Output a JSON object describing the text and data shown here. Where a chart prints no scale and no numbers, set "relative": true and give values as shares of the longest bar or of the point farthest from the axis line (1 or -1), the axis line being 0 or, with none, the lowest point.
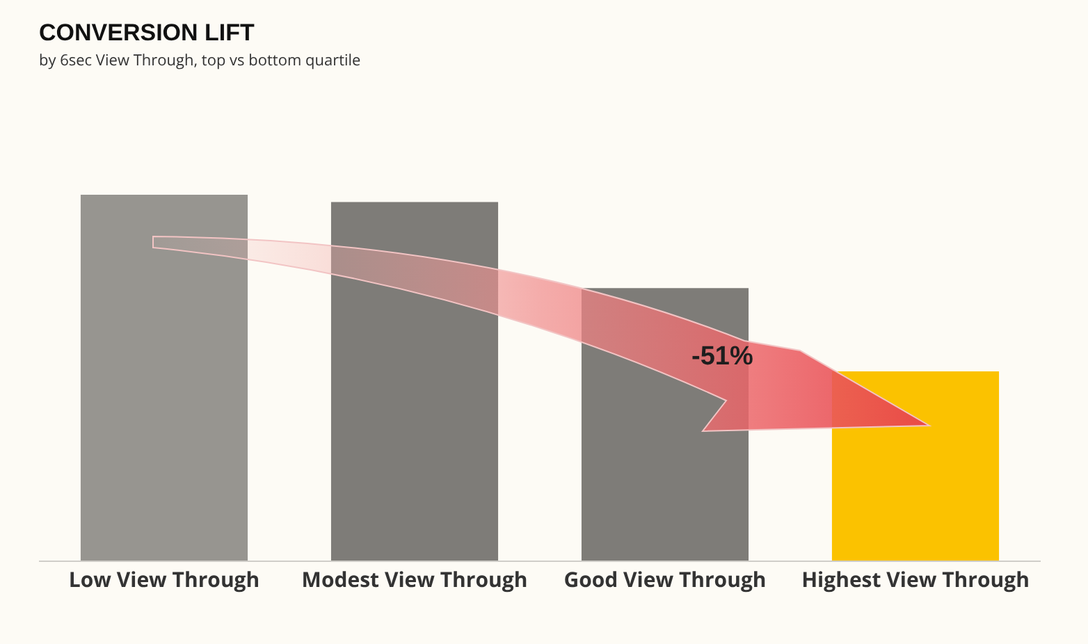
{
  "chart_data": {
    "type": "bar",
    "title": "CONVERSION LIFT",
    "subtitle": "by 6sec View Through, top vs bottom quartile",
    "categories": [
      "Low View Through",
      "Modest View Through",
      "Good View Through",
      "Highest View Through"
    ],
    "values": [
      1,
      0.98,
      0.745,
      0.517
    ],
    "colors": [
      "#979590",
      "#7e7c78",
      "#7e7c78",
      "#fbc200"
    ],
    "relative": true,
    "annotations": [
      "-51%"
    ]
  }
}
